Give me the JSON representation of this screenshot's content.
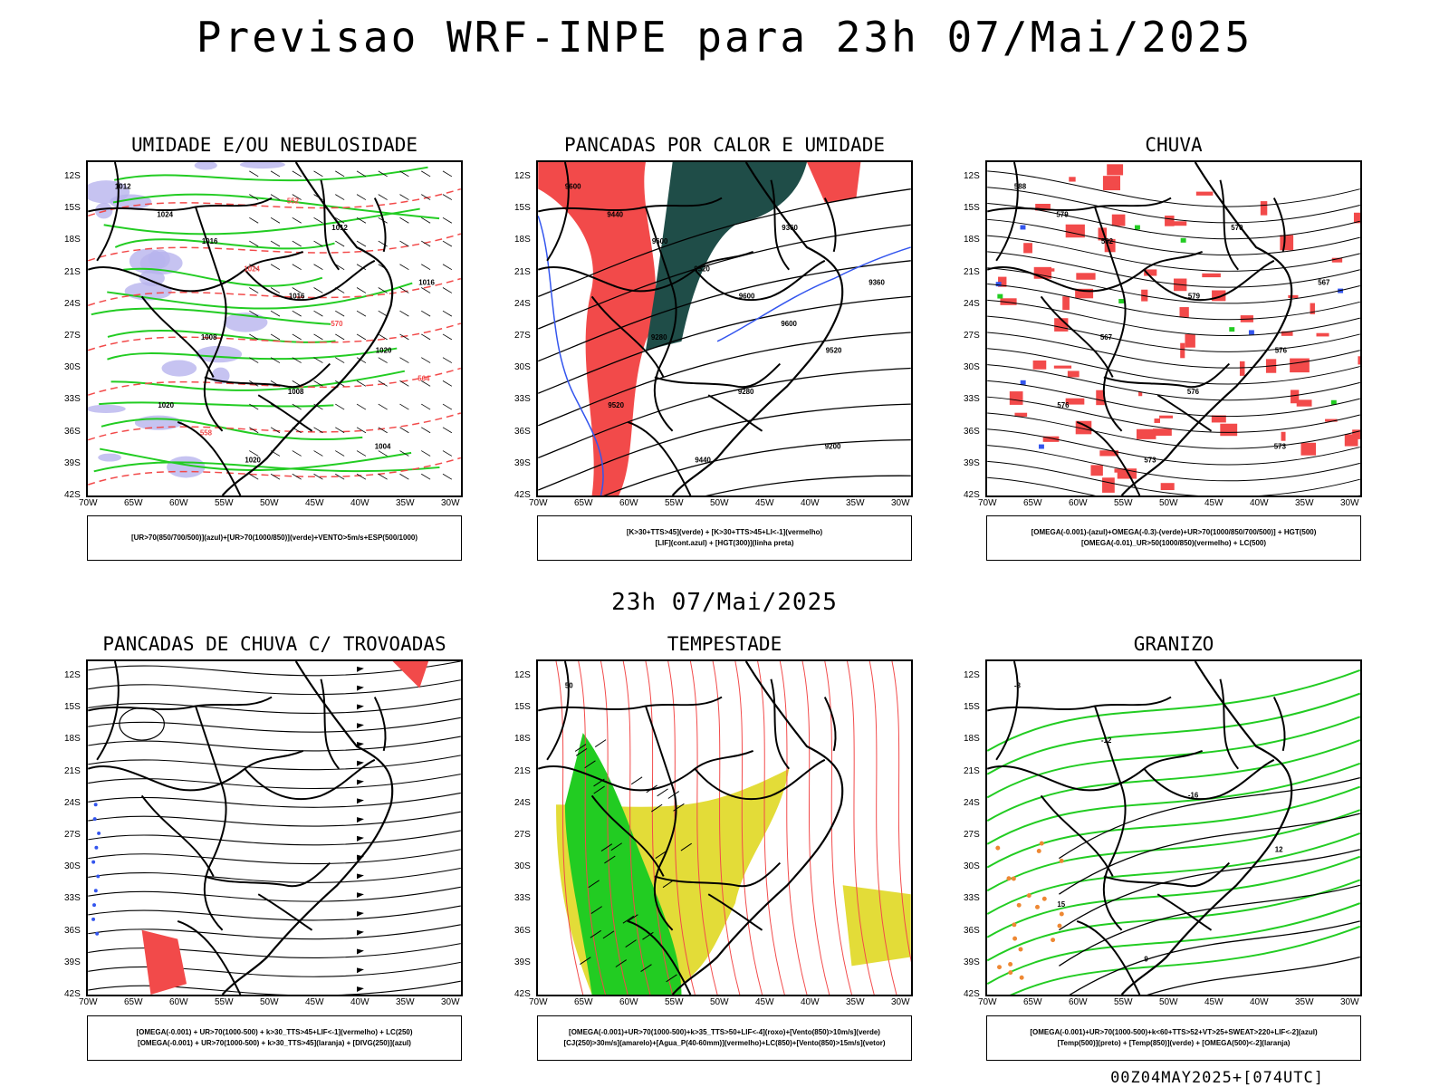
{
  "title": "Previsao WRF-INPE  para 23h 07/Mai/2025",
  "mid_title": "23h 07/Mai/2025",
  "footer": "00Z04MAY2025+[074UTC]",
  "lat_labels": [
    "12S",
    "15S",
    "18S",
    "21S",
    "24S",
    "27S",
    "30S",
    "33S",
    "36S",
    "39S",
    "42S"
  ],
  "lon_labels": [
    "70W",
    "65W",
    "60W",
    "55W",
    "50W",
    "45W",
    "40W",
    "35W",
    "30W"
  ],
  "colors": {
    "accent_red": "#f24a4a",
    "green": "#22cc22",
    "blue": "#3355ee",
    "dark_teal": "#1f4d48",
    "yellow": "#e3dc38",
    "lavender": "#b8b4ee",
    "orange": "#ee8833"
  },
  "panels": [
    {
      "title": "UMIDADE E/OU NEBULOSIDADE",
      "legend": [
        "[UR>70(850/700/500)](azul)+[UR>70(1000/850)](verde)+VENTO>5m/s+ESP(500/1000)"
      ],
      "contour_labels": [
        "1012",
        "1016",
        "1016",
        "1020",
        "1020",
        "1020",
        "1012",
        "1016",
        "1008",
        "1008",
        "1004",
        "1024",
        "1024",
        "570",
        "564",
        "558",
        "552"
      ]
    },
    {
      "title": "PANCADAS POR CALOR E UMIDADE",
      "legend": [
        "[K>30+TTS>45](verde) + [K>30+TTS>45+LI<-1](vermelho)",
        "[LIF](cont.azul) + [HGT(300)](linha preta)"
      ],
      "contour_labels": [
        "9600",
        "9600",
        "9600",
        "9520",
        "9520",
        "9440",
        "9360",
        "9360",
        "9280",
        "9280",
        "9200",
        "9440",
        "9520",
        "9600"
      ]
    },
    {
      "title": "CHUVA",
      "legend": [
        "[OMEGA(-0.001)-(azul)+OMEGA(-0.3)-(verde)+UR>70(1000/850/700/500)] + HGT(500)",
        "[OMEGA(-0.01)_UR>50(1000/850)(vermelho) + LC(500)"
      ],
      "contour_labels": [
        "588",
        "582",
        "579",
        "576",
        "576",
        "573",
        "570",
        "567",
        "567",
        "576",
        "573",
        "579"
      ]
    },
    {
      "title": "PANCADAS DE CHUVA C/ TROVOADAS",
      "legend": [
        "[OMEGA(-0.001) + UR>70(1000-500) + k>30_TTS>45+LIF<-1](vermelho) + LC(250)",
        "[OMEGA(-0.001) + UR>70(1000-500) + k>30_TTS>45](laranja) + [DIVG(250)](azul)"
      ],
      "contour_labels": []
    },
    {
      "title": "TEMPESTADE",
      "legend": [
        "[OMEGA(-0.001)+UR>70(1000-500)+k>35_TTS>50+LIF<-4](roxo)+[Vento(850)>10m/s](verde)",
        "[CJ(250)>30m/s](amarelo)+[Agua_P(40-60mm)](vermelho)+LC(850)+[Vento(850)>15m/s](vetor)"
      ],
      "contour_labels": [
        "50"
      ]
    },
    {
      "title": "GRANIZO",
      "legend": [
        "[OMEGA(-0.001)+UR>70(1000-500)+k<60+TTS>52+VT>25+SWEAT>220+LIF<-2](azul)",
        "[Temp(500)](preto) + [Temp(850)](verde) + [OMEGA(500)<-2](laranja)"
      ],
      "contour_labels": [
        "-8",
        "-12",
        "-16",
        "12",
        "15",
        "9"
      ]
    }
  ]
}
